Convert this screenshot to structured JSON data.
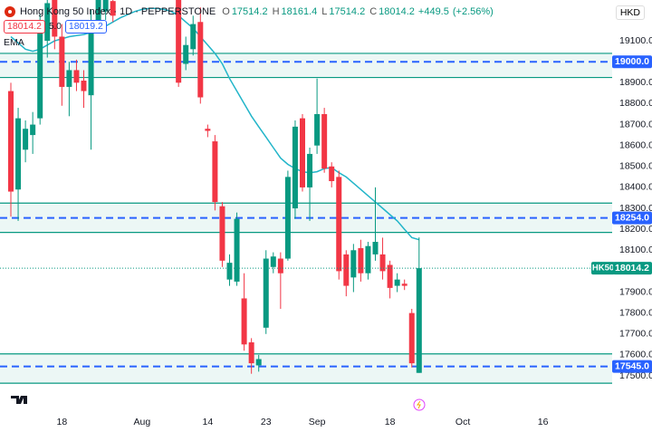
{
  "chart_data": {
    "type": "candlestick",
    "title": "Hong Kong 50 Index · 1D · PEPPERSTONE",
    "ohlc": [
      {
        "label": "O",
        "value": 17514.2
      },
      {
        "label": "H",
        "value": 18161.4
      },
      {
        "label": "L",
        "value": 17514.2
      },
      {
        "label": "C",
        "value": 18014.2
      }
    ],
    "change": {
      "value": 449.5,
      "label": "+449.5"
    },
    "change_pct": {
      "value": 2.56,
      "label": "(+2.56%)"
    },
    "bid": 18014.2,
    "spread": {
      "value": 5,
      "label": "5.0"
    },
    "ask": 18019.2,
    "currency": "HKD",
    "colors": {
      "up": "#089981",
      "down": "#f23645",
      "level": "#2962ff"
    },
    "categories": [
      null,
      null,
      null,
      null,
      null,
      null,
      null,
      "18",
      null,
      null,
      null,
      null,
      null,
      null,
      null,
      null,
      null,
      null,
      "Aug",
      null,
      null,
      null,
      null,
      null,
      null,
      null,
      null,
      "14",
      null,
      null,
      null,
      null,
      null,
      null,
      null,
      "23",
      null,
      null,
      null,
      null,
      null,
      null,
      "Sep",
      null,
      null,
      null,
      null,
      null,
      null,
      null,
      null,
      null,
      "18",
      null,
      null,
      null,
      null,
      null,
      null,
      null,
      null,
      null,
      "Oct",
      null,
      null,
      null,
      null,
      null,
      null,
      null,
      null,
      null,
      null,
      "16"
    ],
    "open": [
      18860,
      18390,
      18580,
      18650,
      18730,
      19100,
      19300,
      19120,
      18880,
      18960,
      18910,
      18840,
      19180,
      19240,
      19290,
      null,
      null,
      null,
      null,
      null,
      null,
      null,
      null,
      19300,
      18990,
      19060,
      19190,
      18680,
      18620,
      18310,
      17960,
      17950,
      17870,
      17660,
      17550,
      17730,
      18020,
      18060,
      18060,
      18300,
      18730,
      18400,
      18600,
      18750,
      18500,
      18450,
      18080,
      17970,
      18110,
      17990,
      18080,
      18080,
      18030,
      17930,
      17940,
      17800,
      17514.2,
      null,
      null,
      null,
      null,
      null,
      null,
      null,
      null,
      null,
      null,
      null,
      null,
      null,
      null,
      null,
      null,
      null
    ],
    "high": [
      18900,
      18780,
      18720,
      18760,
      19230,
      19320,
      19340,
      19180,
      19000,
      19010,
      18960,
      19250,
      19360,
      19380,
      19320,
      null,
      null,
      null,
      null,
      null,
      null,
      null,
      null,
      19330,
      19120,
      19220,
      19260,
      18700,
      18650,
      18330,
      18080,
      18280,
      17990,
      17680,
      17600,
      18100,
      18090,
      18090,
      18480,
      18720,
      18750,
      18590,
      18920,
      18780,
      18520,
      18480,
      18100,
      18130,
      18150,
      18140,
      18400,
      18160,
      18050,
      17990,
      17960,
      17820,
      18161.4,
      null,
      null,
      null,
      null,
      null,
      null,
      null,
      null,
      null,
      null,
      null,
      null,
      null,
      null,
      null,
      null,
      null
    ],
    "low": [
      18260,
      18240,
      18520,
      18560,
      18700,
      19020,
      19060,
      18790,
      18740,
      18860,
      18780,
      18580,
      19150,
      19200,
      19190,
      null,
      null,
      null,
      null,
      null,
      null,
      null,
      null,
      18880,
      18960,
      19030,
      18800,
      18640,
      18290,
      18020,
      17930,
      17930,
      17620,
      17510,
      17520,
      17700,
      17990,
      17820,
      18050,
      18250,
      18380,
      18240,
      18560,
      18470,
      18400,
      17960,
      17880,
      17900,
      17950,
      17960,
      18050,
      17960,
      17870,
      17900,
      17910,
      17540,
      17514.2,
      null,
      null,
      null,
      null,
      null,
      null,
      null,
      null,
      null,
      null,
      null,
      null,
      null,
      null,
      null,
      null,
      null
    ],
    "close": [
      18380,
      18730,
      18680,
      18700,
      19150,
      19280,
      19120,
      18880,
      18960,
      18900,
      18860,
      19190,
      19320,
      19340,
      19220,
      null,
      null,
      null,
      null,
      null,
      null,
      null,
      null,
      18900,
      19080,
      19180,
      18830,
      18670,
      18330,
      18050,
      18040,
      18250,
      17650,
      17560,
      17580,
      18060,
      18070,
      17990,
      18450,
      18690,
      18400,
      18560,
      18750,
      18490,
      18430,
      18000,
      17930,
      18100,
      17990,
      18120,
      18140,
      18000,
      17920,
      17960,
      17930,
      17560,
      18014.2,
      null,
      null,
      null,
      null,
      null,
      null,
      null,
      null,
      null,
      null,
      null,
      null,
      null,
      null,
      null,
      null,
      null
    ],
    "series": [
      {
        "name": "EMA",
        "color": "#22b5c9",
        "values": [
          19120,
          19090,
          19060,
          19050,
          19060,
          19080,
          19100,
          19110,
          19120,
          19125,
          19130,
          19140,
          19150,
          19170,
          19190,
          19210,
          19225,
          19240,
          19250,
          19255,
          19255,
          19250,
          19240,
          19220,
          19190,
          19160,
          19120,
          19080,
          19040,
          18990,
          18920,
          18860,
          18800,
          18740,
          18690,
          18640,
          18590,
          18540,
          18510,
          18490,
          18475,
          18470,
          18475,
          18490,
          18495,
          18470,
          18450,
          18420,
          18390,
          18360,
          18330,
          18300,
          18270,
          18240,
          18200,
          18160,
          18150,
          null,
          null,
          null,
          null,
          null,
          null,
          null,
          null,
          null,
          null,
          null,
          null,
          null,
          null,
          null,
          null,
          null
        ]
      }
    ],
    "levels": [
      {
        "value": 19000,
        "label": "19000.0"
      },
      {
        "value": 18254,
        "label": "18254.0"
      },
      {
        "value": 17545,
        "label": "17545.0"
      }
    ],
    "zones": [
      [
        18925,
        19040
      ],
      [
        18185,
        18325
      ],
      [
        17465,
        17605
      ]
    ],
    "last_price": {
      "symbol": "HK50",
      "value": 18014.2
    },
    "ylim": [
      17327,
      19295
    ],
    "yticks": [
      {
        "value": 19100,
        "label": "19100.0"
      },
      {
        "value": 18900,
        "label": "18900.0"
      },
      {
        "value": 18800,
        "label": "18800.0"
      },
      {
        "value": 18700,
        "label": "18700.0"
      },
      {
        "value": 18600,
        "label": "18600.0"
      },
      {
        "value": 18500,
        "label": "18500.0"
      },
      {
        "value": 18400,
        "label": "18400.0"
      },
      {
        "value": 18300,
        "label": "18300.0"
      },
      {
        "value": 18200,
        "label": "18200.0"
      },
      {
        "value": 18100,
        "label": "18100.0"
      },
      {
        "value": 17900,
        "label": "17900.0"
      },
      {
        "value": 17800,
        "label": "17800.0"
      },
      {
        "value": 17700,
        "label": "17700.0"
      },
      {
        "value": 17600,
        "label": "17600.0"
      },
      {
        "value": 17500,
        "label": "17500.0"
      }
    ],
    "grid": false
  }
}
